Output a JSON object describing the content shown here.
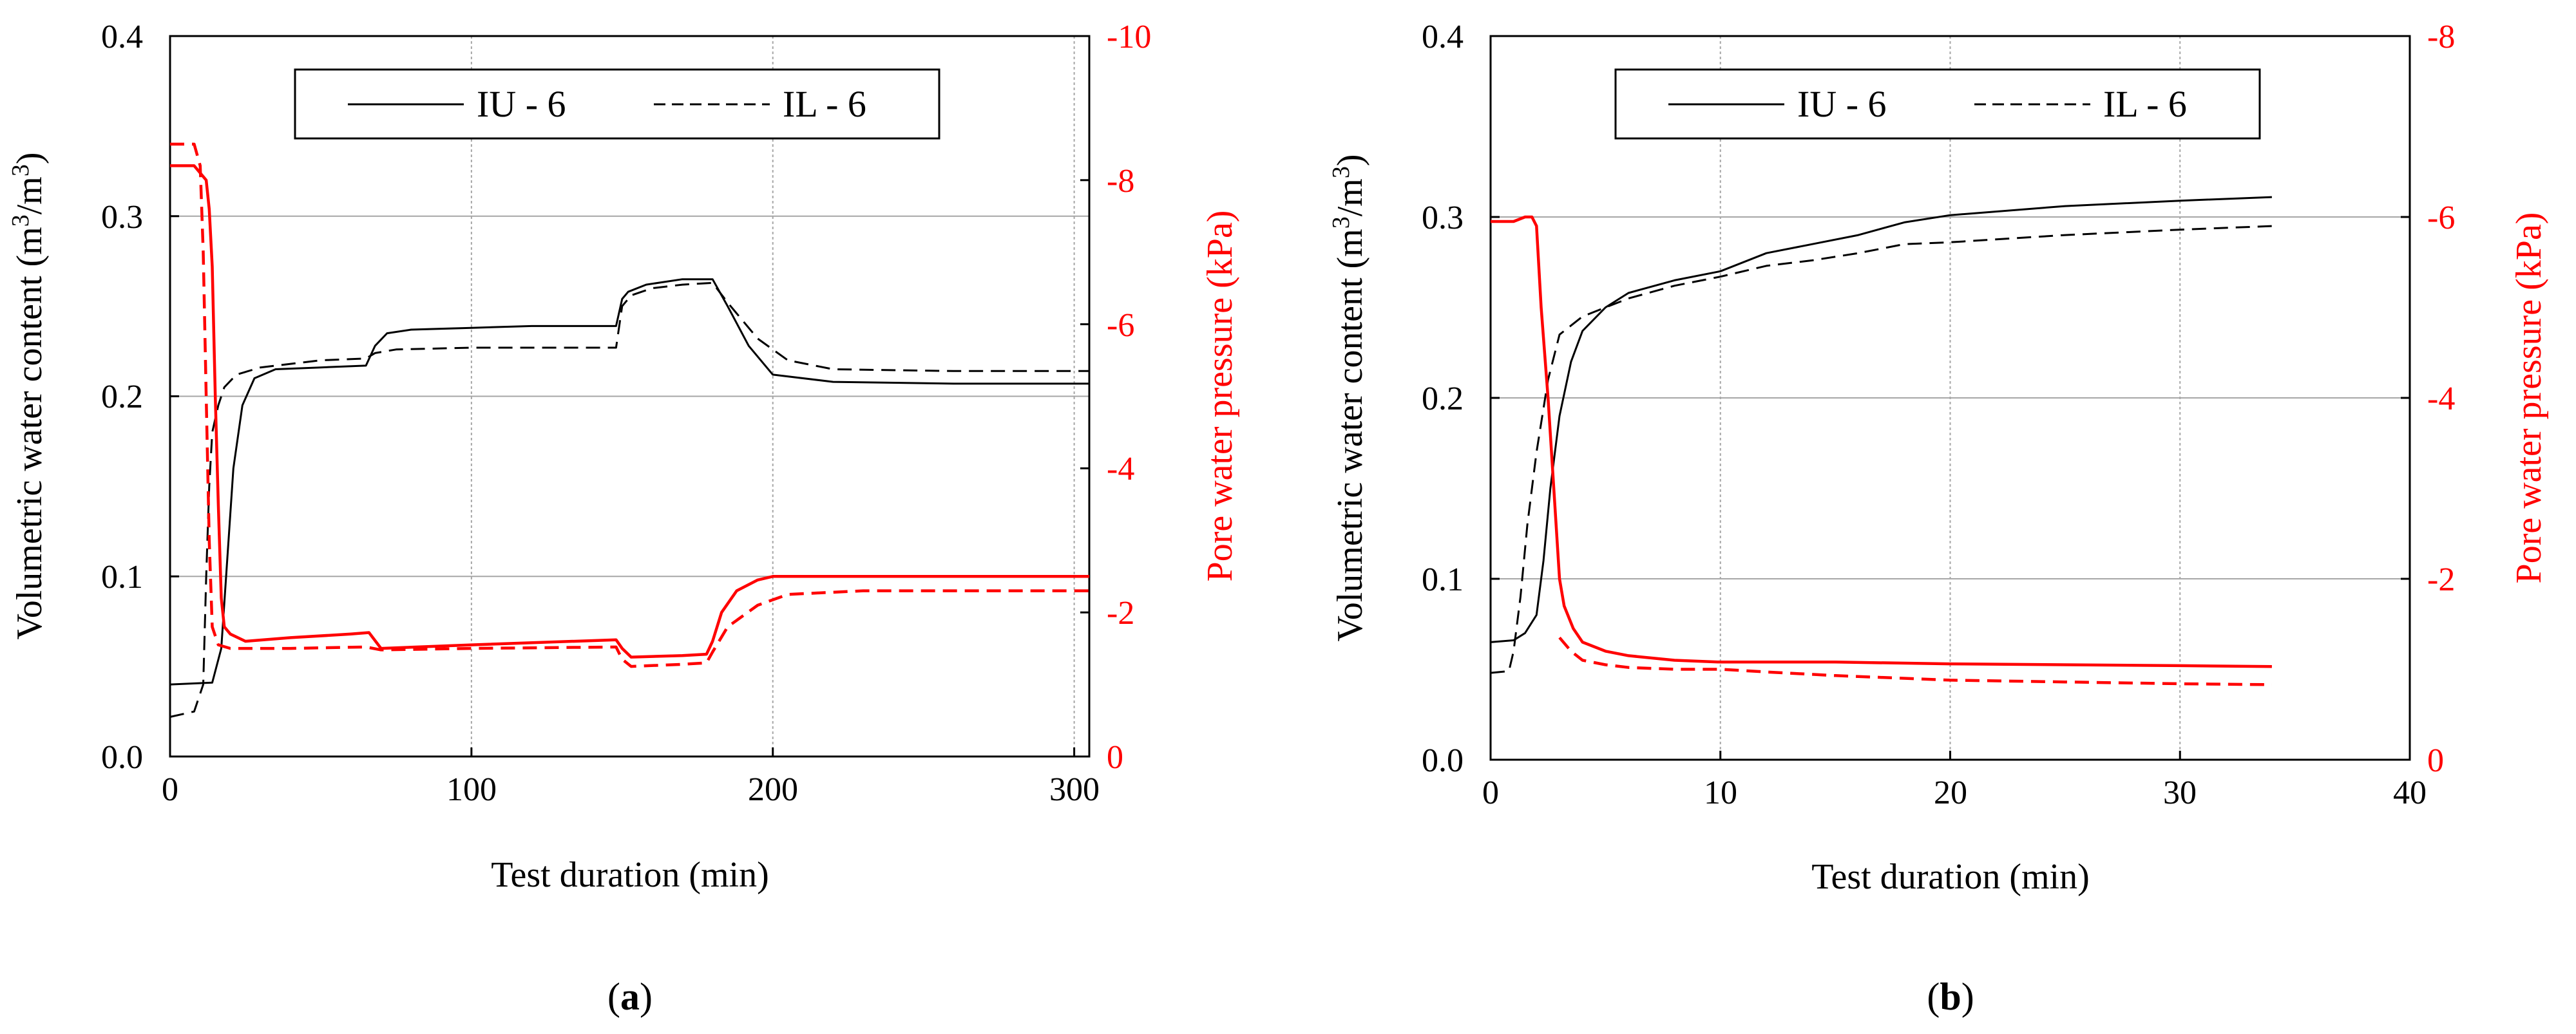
{
  "colors": {
    "primary_axis": "#000000",
    "secondary_axis": "#ff0000",
    "grid": "#a6a6a6"
  },
  "chart_data": [
    {
      "type": "line",
      "panel_label_prefix": "(",
      "panel_label_letter": "a",
      "panel_label_suffix": ")",
      "xlabel": "Test duration (min)",
      "ylabel_prefix": "Volumetric water content (m",
      "ylabel_unit_a": "3",
      "ylabel_mid": "/m",
      "ylabel_unit_b": "3",
      "ylabel_suffix": ")",
      "y2label": "Pore water pressure (kPa)",
      "xlim": [
        0,
        305
      ],
      "ylim": [
        0,
        0.4
      ],
      "y2lim": [
        0,
        -10
      ],
      "x_ticks": [
        0,
        100,
        200,
        300
      ],
      "y_ticks": [
        "0.0",
        "0.1",
        "0.2",
        "0.3",
        "0.4"
      ],
      "y2_ticks": [
        "0",
        "-2",
        "-4",
        "-6",
        "-8",
        "-10"
      ],
      "grid": true,
      "legend_position": "top-center",
      "legend": [
        "IU - 6",
        "IL - 6"
      ],
      "series": [
        {
          "name": "IU - 6",
          "axis": "left",
          "color": "#000000",
          "style": "solid",
          "x": [
            0,
            14,
            17,
            19,
            21,
            24,
            28,
            35,
            50,
            65,
            68,
            72,
            80,
            100,
            120,
            148,
            150,
            152,
            158,
            170,
            180,
            185,
            192,
            200,
            220,
            260,
            305
          ],
          "y": [
            0.04,
            0.041,
            0.06,
            0.11,
            0.16,
            0.195,
            0.21,
            0.215,
            0.216,
            0.217,
            0.228,
            0.235,
            0.237,
            0.238,
            0.239,
            0.239,
            0.254,
            0.258,
            0.262,
            0.265,
            0.265,
            0.25,
            0.228,
            0.212,
            0.208,
            0.207,
            0.207
          ]
        },
        {
          "name": "IL - 6",
          "axis": "left",
          "color": "#000000",
          "style": "dashed",
          "x": [
            0,
            8,
            11,
            12,
            13,
            14,
            16,
            18,
            22,
            30,
            50,
            65,
            68,
            75,
            100,
            148,
            150,
            153,
            160,
            170,
            180,
            185,
            195,
            205,
            220,
            260,
            305
          ],
          "y": [
            0.022,
            0.025,
            0.04,
            0.1,
            0.15,
            0.18,
            0.195,
            0.205,
            0.212,
            0.216,
            0.22,
            0.221,
            0.224,
            0.226,
            0.227,
            0.227,
            0.25,
            0.256,
            0.26,
            0.262,
            0.263,
            0.252,
            0.232,
            0.22,
            0.215,
            0.214,
            0.214
          ]
        },
        {
          "axis": "right",
          "color": "#ff0000",
          "style": "solid",
          "x": [
            0,
            8,
            12,
            13,
            14,
            15,
            16,
            17,
            18,
            20,
            25,
            40,
            60,
            66,
            70,
            100,
            148,
            150,
            153,
            170,
            178,
            180,
            183,
            188,
            195,
            200,
            230,
            305
          ],
          "y": [
            -8.2,
            -8.2,
            -8.0,
            -7.6,
            -6.8,
            -5.0,
            -3.5,
            -2.2,
            -1.8,
            -1.7,
            -1.6,
            -1.65,
            -1.7,
            -1.72,
            -1.5,
            -1.55,
            -1.62,
            -1.5,
            -1.38,
            -1.4,
            -1.42,
            -1.6,
            -2.0,
            -2.3,
            -2.45,
            -2.5,
            -2.5,
            -2.5
          ]
        },
        {
          "axis": "right",
          "color": "#ff0000",
          "style": "dashed",
          "x": [
            0,
            8,
            10,
            11,
            12,
            13,
            14,
            16,
            20,
            40,
            65,
            70,
            100,
            148,
            150,
            153,
            170,
            178,
            180,
            185,
            195,
            205,
            230,
            305
          ],
          "y": [
            -8.5,
            -8.5,
            -8.2,
            -7.0,
            -5.0,
            -3.0,
            -1.8,
            -1.55,
            -1.5,
            -1.5,
            -1.52,
            -1.48,
            -1.5,
            -1.52,
            -1.35,
            -1.25,
            -1.28,
            -1.3,
            -1.45,
            -1.8,
            -2.1,
            -2.25,
            -2.3,
            -2.3
          ]
        }
      ]
    },
    {
      "type": "line",
      "panel_label_prefix": "(",
      "panel_label_letter": "b",
      "panel_label_suffix": ")",
      "xlabel": "Test duration (min)",
      "ylabel_prefix": "Volumetric water content (m",
      "ylabel_unit_a": "3",
      "ylabel_mid": "/m",
      "ylabel_unit_b": "3",
      "ylabel_suffix": ")",
      "y2label": "Pore water pressure (kPa)",
      "xlim": [
        0,
        40
      ],
      "ylim": [
        0,
        0.4
      ],
      "y2lim": [
        0,
        -8
      ],
      "x_ticks": [
        0,
        10,
        20,
        30,
        40
      ],
      "y_ticks": [
        "0.0",
        "0.1",
        "0.2",
        "0.3",
        "0.4"
      ],
      "y2_ticks": [
        "0",
        "-2",
        "-4",
        "-6",
        "-8"
      ],
      "grid": true,
      "legend_position": "top-center",
      "legend": [
        "IU - 6",
        "IL - 6"
      ],
      "series": [
        {
          "name": "IU - 6",
          "axis": "left",
          "color": "#000000",
          "style": "solid",
          "x": [
            0,
            1,
            1.5,
            2,
            2.3,
            2.6,
            3,
            3.5,
            4,
            5,
            6,
            8,
            10,
            12,
            14,
            16,
            18,
            20,
            25,
            30,
            34
          ],
          "y": [
            0.065,
            0.066,
            0.07,
            0.08,
            0.11,
            0.15,
            0.19,
            0.22,
            0.237,
            0.25,
            0.258,
            0.265,
            0.27,
            0.28,
            0.285,
            0.29,
            0.297,
            0.301,
            0.306,
            0.309,
            0.311
          ]
        },
        {
          "name": "IL - 6",
          "axis": "left",
          "color": "#000000",
          "style": "dashed",
          "x": [
            0,
            0.8,
            1.0,
            1.3,
            1.6,
            2.0,
            2.5,
            3,
            4,
            5,
            6,
            8,
            10,
            12,
            14,
            16,
            18,
            20,
            25,
            30,
            34
          ],
          "y": [
            0.048,
            0.049,
            0.06,
            0.09,
            0.13,
            0.17,
            0.21,
            0.235,
            0.245,
            0.25,
            0.255,
            0.262,
            0.267,
            0.273,
            0.276,
            0.28,
            0.285,
            0.286,
            0.29,
            0.293,
            0.295
          ]
        },
        {
          "axis": "right",
          "color": "#ff0000",
          "style": "solid",
          "x": [
            0,
            1,
            1.5,
            1.8,
            2.0,
            2.2,
            2.5,
            2.8,
            3.0,
            3.2,
            3.6,
            4,
            5,
            6,
            8,
            10,
            15,
            20,
            25,
            30,
            34
          ],
          "y": [
            -5.95,
            -5.95,
            -6.0,
            -6.0,
            -5.9,
            -5.0,
            -4.0,
            -2.8,
            -2.0,
            -1.7,
            -1.45,
            -1.3,
            -1.2,
            -1.15,
            -1.1,
            -1.08,
            -1.08,
            -1.06,
            -1.05,
            -1.04,
            -1.03
          ]
        },
        {
          "axis": "right",
          "color": "#ff0000",
          "style": "dashed",
          "x": [
            3.0,
            3.5,
            4,
            5,
            6,
            8,
            10,
            12,
            15,
            20,
            25,
            30,
            34
          ],
          "y": [
            -1.35,
            -1.2,
            -1.1,
            -1.05,
            -1.02,
            -1.0,
            -1.0,
            -0.97,
            -0.93,
            -0.88,
            -0.86,
            -0.84,
            -0.83
          ]
        }
      ]
    }
  ]
}
